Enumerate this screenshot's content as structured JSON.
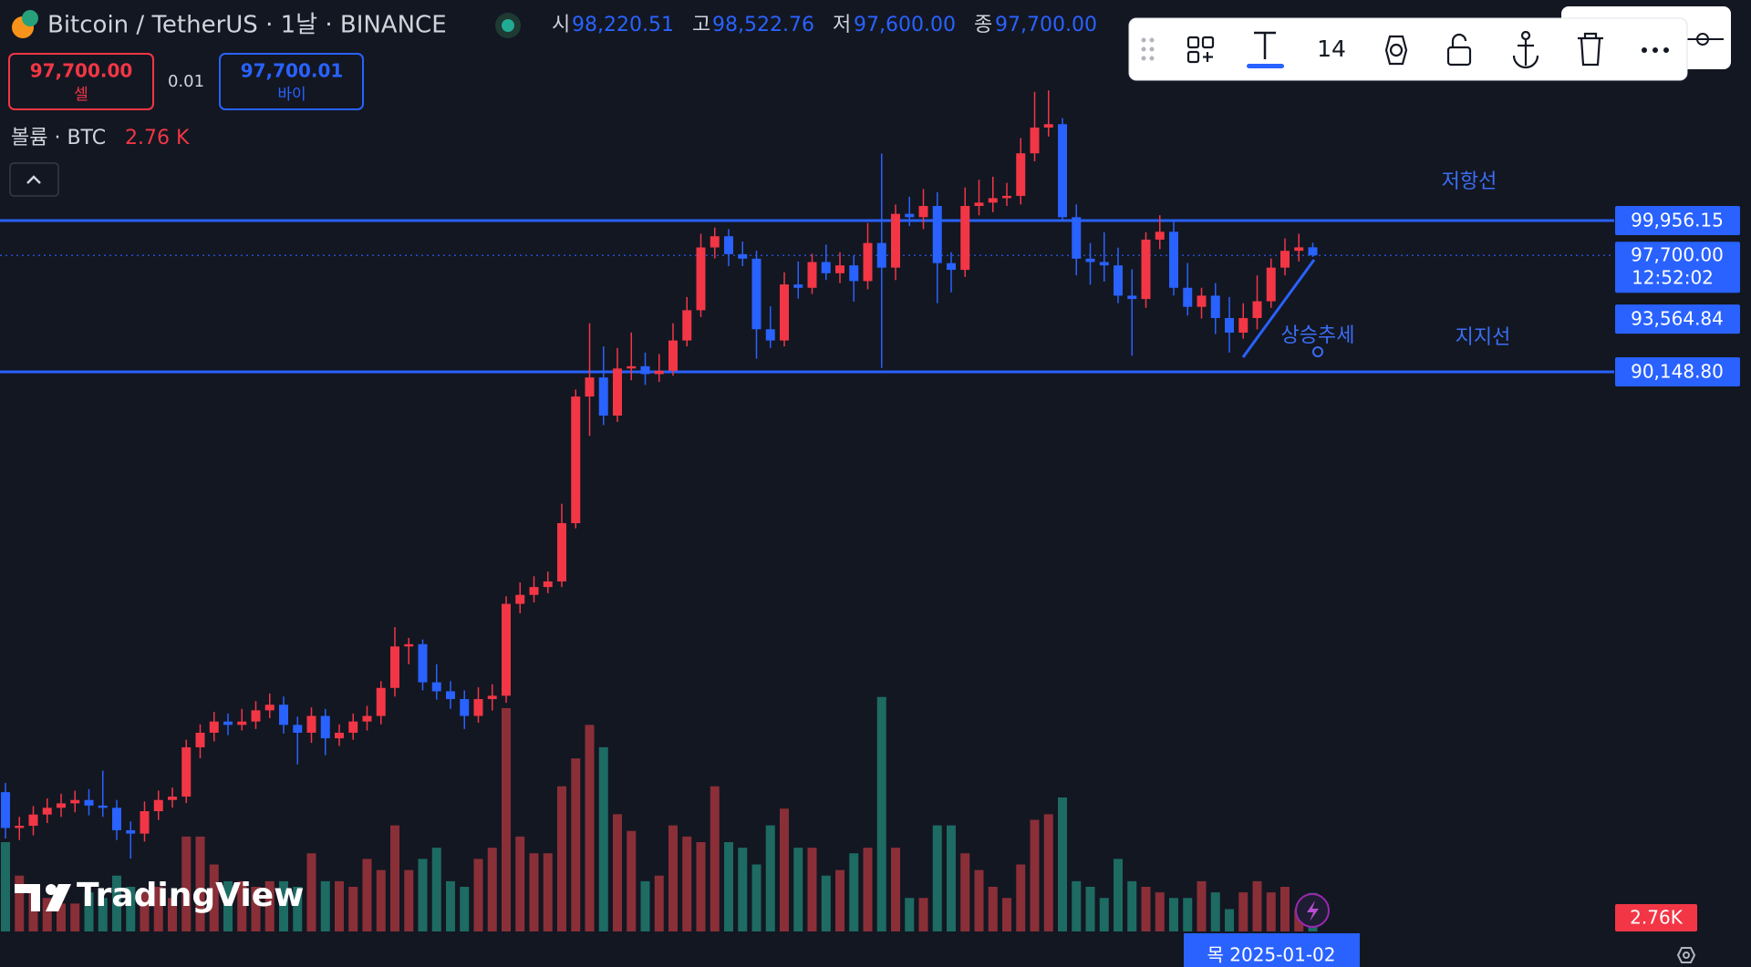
{
  "header": {
    "symbol": "Bitcoin / TetherUS · 1날 · BINANCE",
    "ohlc": [
      {
        "label": "시",
        "value": "98,220.51"
      },
      {
        "label": "고",
        "value": "98,522.76"
      },
      {
        "label": "저",
        "value": "97,600.00"
      },
      {
        "label": "종",
        "value": "97,700.00"
      }
    ]
  },
  "trade": {
    "sell_price": "97,700.00",
    "sell_label": "셀",
    "spread": "0.01",
    "buy_price": "97,700.01",
    "buy_label": "바이"
  },
  "volume_legend": {
    "label": "볼륨 · BTC",
    "value": "2.76 K"
  },
  "toolbar": {
    "font_size": "14"
  },
  "annotations": {
    "resistance": "저항선",
    "support": "지지선",
    "uptrend": "상승추세"
  },
  "chart": {
    "up_color": "#f23645",
    "down_color": "#2962ff",
    "volume_up_color": "#8a2f37",
    "volume_down_color": "#1d6b63",
    "level_color": "#2962ff",
    "levels": [
      {
        "value": 99956.15,
        "label": "99,956.15"
      },
      {
        "value": 90148.8,
        "label": "90,148.80"
      }
    ],
    "trend_label": {
      "value": 93564.84,
      "label": "93,564.84"
    },
    "last_price": {
      "value": 97700,
      "label": "97,700.00",
      "countdown": "12:52:02"
    },
    "last_volume_label": "2.76K",
    "time_label": "목 2025-01-02",
    "candles": [
      [
        62905,
        63500,
        59900,
        60580
      ],
      [
        60580,
        61300,
        59800,
        60725
      ],
      [
        60725,
        62000,
        60100,
        61452
      ],
      [
        61452,
        62500,
        60900,
        61888
      ],
      [
        61888,
        62800,
        61300,
        62178
      ],
      [
        62178,
        63000,
        61600,
        62396
      ],
      [
        62396,
        63100,
        61400,
        62033
      ],
      [
        62033,
        64300,
        61300,
        61888
      ],
      [
        61888,
        62400,
        59800,
        60435
      ],
      [
        60435,
        61000,
        58600,
        60217
      ],
      [
        60217,
        62300,
        59700,
        61670
      ],
      [
        61670,
        63000,
        61100,
        62396
      ],
      [
        62396,
        63200,
        61900,
        62614
      ],
      [
        62614,
        66300,
        62200,
        65811
      ],
      [
        65811,
        67300,
        65100,
        66755
      ],
      [
        66755,
        68100,
        66200,
        67482
      ],
      [
        67482,
        68000,
        66600,
        67264
      ],
      [
        67264,
        68300,
        66900,
        67482
      ],
      [
        67482,
        68800,
        67000,
        68208
      ],
      [
        68208,
        69300,
        67700,
        68571
      ],
      [
        68571,
        69100,
        66700,
        67264
      ],
      [
        67264,
        67800,
        64700,
        66755
      ],
      [
        66755,
        68400,
        66100,
        67845
      ],
      [
        67845,
        68300,
        65300,
        66392
      ],
      [
        66392,
        67300,
        65900,
        66755
      ],
      [
        66755,
        68000,
        66300,
        67482
      ],
      [
        67482,
        68500,
        66900,
        67845
      ],
      [
        67845,
        70100,
        67300,
        69661
      ],
      [
        69661,
        73600,
        69100,
        72349
      ],
      [
        72349,
        72900,
        71200,
        72495
      ],
      [
        72495,
        72800,
        69500,
        70024
      ],
      [
        70024,
        71200,
        68900,
        69443
      ],
      [
        69443,
        70100,
        68300,
        68935
      ],
      [
        68935,
        69500,
        67000,
        67845
      ],
      [
        67845,
        69700,
        67400,
        68935
      ],
      [
        68935,
        69900,
        68200,
        69153
      ],
      [
        69153,
        75600,
        68700,
        75110
      ],
      [
        75110,
        76500,
        74500,
        75691
      ],
      [
        75691,
        76900,
        75200,
        76200
      ],
      [
        76200,
        77200,
        75800,
        76563
      ],
      [
        76563,
        81600,
        76200,
        80341
      ],
      [
        80341,
        89000,
        80000,
        88550
      ],
      [
        88550,
        93300,
        86000,
        89785
      ],
      [
        89785,
        91800,
        86700,
        87315
      ],
      [
        87315,
        91700,
        86900,
        90366
      ],
      [
        90366,
        92700,
        89600,
        90512
      ],
      [
        90512,
        91400,
        89300,
        90003
      ],
      [
        90003,
        91300,
        89500,
        90221
      ],
      [
        90221,
        93300,
        89900,
        92183
      ],
      [
        92183,
        95000,
        91800,
        94144
      ],
      [
        94144,
        99100,
        93700,
        98213
      ],
      [
        98213,
        99500,
        97500,
        98939
      ],
      [
        98939,
        99400,
        97000,
        97777
      ],
      [
        97777,
        98600,
        97000,
        97486
      ],
      [
        97486,
        98000,
        91000,
        92909
      ],
      [
        92909,
        94400,
        91700,
        92183
      ],
      [
        92183,
        96600,
        91800,
        95815
      ],
      [
        95815,
        97300,
        94900,
        95597
      ],
      [
        95597,
        97800,
        95200,
        97268
      ],
      [
        97268,
        98400,
        96100,
        96542
      ],
      [
        96542,
        97900,
        95900,
        97050
      ],
      [
        97050,
        97700,
        94700,
        96033
      ],
      [
        96033,
        99800,
        95500,
        98503
      ],
      [
        98503,
        104300,
        90400,
        96905
      ],
      [
        96905,
        101000,
        96100,
        100392
      ],
      [
        100392,
        101500,
        99600,
        100174
      ],
      [
        100174,
        102000,
        99400,
        100901
      ],
      [
        100901,
        101800,
        94600,
        97196
      ],
      [
        97196,
        97900,
        95300,
        96760
      ],
      [
        96760,
        102100,
        96300,
        100901
      ],
      [
        100901,
        102600,
        100300,
        101119
      ],
      [
        101119,
        102800,
        100500,
        101409
      ],
      [
        101409,
        102400,
        100900,
        101555
      ],
      [
        101555,
        105300,
        101000,
        104315
      ],
      [
        104315,
        108300,
        103800,
        105986
      ],
      [
        105986,
        108400,
        105400,
        106204
      ],
      [
        106204,
        106600,
        99900,
        100174
      ],
      [
        100174,
        101000,
        96400,
        97486
      ],
      [
        97486,
        98500,
        95800,
        97268
      ],
      [
        97268,
        99200,
        96000,
        97050
      ],
      [
        97050,
        98200,
        94600,
        95089
      ],
      [
        95089,
        96800,
        91200,
        94871
      ],
      [
        94871,
        99200,
        94300,
        98721
      ],
      [
        98721,
        100300,
        98100,
        99230
      ],
      [
        99230,
        99900,
        95100,
        95597
      ],
      [
        95597,
        97200,
        93800,
        94362
      ],
      [
        94362,
        95600,
        93600,
        95089
      ],
      [
        95089,
        95900,
        92600,
        93636
      ],
      [
        93636,
        95000,
        91400,
        92691
      ],
      [
        92691,
        94600,
        92300,
        93636
      ],
      [
        93636,
        96400,
        92900,
        94725
      ],
      [
        94725,
        97500,
        94300,
        96905
      ],
      [
        96905,
        98800,
        96400,
        97995
      ],
      [
        97995,
        99100,
        97300,
        98220.51
      ],
      [
        98220.51,
        98522.76,
        97600,
        97700
      ]
    ],
    "volumes": [
      6400,
      4000,
      3200,
      2400,
      2000,
      2000,
      2800,
      2400,
      4000,
      3200,
      2800,
      3200,
      2400,
      6800,
      6800,
      4800,
      3600,
      3600,
      3200,
      3600,
      3600,
      3200,
      5600,
      3600,
      3600,
      3200,
      5200,
      4400,
      7600,
      4400,
      5200,
      6000,
      3600,
      3200,
      5200,
      6000,
      16000,
      6800,
      5600,
      5600,
      10400,
      12400,
      14800,
      13200,
      8400,
      7200,
      3600,
      4000,
      7600,
      6800,
      6400,
      10400,
      6400,
      6000,
      4800,
      7600,
      8800,
      6000,
      6000,
      4000,
      4400,
      5600,
      6000,
      16800,
      6000,
      2400,
      2400,
      7600,
      7600,
      5600,
      4400,
      3200,
      2400,
      4800,
      8000,
      8400,
      9600,
      3600,
      3200,
      2400,
      5200,
      3600,
      3200,
      2800,
      2400,
      2400,
      3600,
      2800,
      1600,
      2800,
      3600,
      2800,
      3200,
      1600,
      2760
    ]
  },
  "watermark": "TradingView"
}
